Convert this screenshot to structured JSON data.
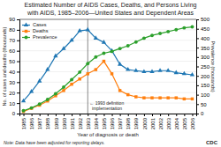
{
  "chart_data": {
    "type": "line",
    "title": "Estimated Number of AIDS Cases, Deaths, and Persons Living",
    "subtitle": "with AIDS, 1985–2006—United States and Dependent Areas",
    "xlabel": "Year of diagnosis or death",
    "ylabel": "No. of cases and deaths (thousands)",
    "y2label": "Prevalence (thousands)",
    "x": [
      1985,
      1986,
      1987,
      1988,
      1989,
      1990,
      1991,
      1992,
      1993,
      1994,
      1995,
      1996,
      1997,
      1998,
      1999,
      2000,
      2001,
      2002,
      2003,
      2004,
      2005,
      2006
    ],
    "xlim": [
      1984.5,
      2006.5
    ],
    "ylim": [
      0,
      90
    ],
    "yticks": [
      0,
      10,
      20,
      30,
      40,
      50,
      60,
      70,
      80,
      90
    ],
    "y2lim": [
      0,
      500
    ],
    "y2ticks": [
      0,
      50,
      100,
      150,
      200,
      250,
      300,
      350,
      400,
      450,
      500
    ],
    "series": [
      {
        "name": "Cases",
        "marker": "triangle",
        "values": [
          12,
          21,
          31,
          42,
          55,
          62,
          70,
          79,
          80,
          72,
          68,
          60,
          47,
          42,
          41,
          40,
          40,
          41,
          41,
          39,
          38,
          37
        ]
      },
      {
        "name": "Deaths",
        "marker": "square",
        "values": [
          2,
          5,
          8,
          12,
          17,
          22,
          28,
          33,
          38,
          42,
          50,
          38,
          22,
          18,
          16,
          15,
          15,
          15,
          15,
          15,
          14,
          14
        ]
      },
      {
        "name": "Prevalence",
        "marker": "circle",
        "axis": "y2",
        "values": [
          15,
          30,
          50,
          75,
          105,
          140,
          180,
          220,
          265,
          300,
          320,
          330,
          345,
          360,
          380,
          400,
          415,
          425,
          435,
          445,
          455,
          460
        ]
      }
    ],
    "annotations": [
      {
        "x": 1993,
        "text": [
          "← 1993 definition",
          "  implementation"
        ]
      }
    ],
    "note": "Note: Data have been adjusted for reporting delays.",
    "source": "CDC",
    "grid": true,
    "legend": "upper left"
  }
}
